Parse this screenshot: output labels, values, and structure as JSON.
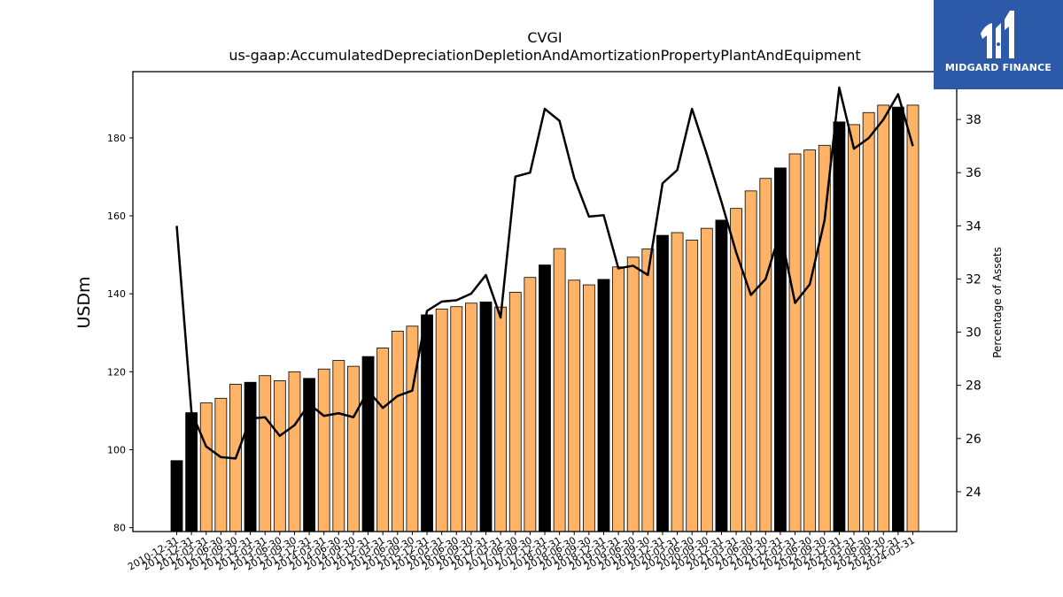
{
  "chart_data": {
    "type": "bar",
    "title": "CVGI",
    "subtitle": "us-gaap:AccumulatedDepreciationDepletionAndAmortizationPropertyPlantAndEquipment",
    "ylabel": "USDm",
    "y2label": "Percentage of Assets",
    "ylim": [
      79,
      197
    ],
    "y2lim": [
      22.5,
      39.8
    ],
    "yticks": [
      80,
      100,
      120,
      140,
      160,
      180
    ],
    "y2ticks": [
      24,
      26,
      28,
      30,
      32,
      34,
      36,
      38
    ],
    "grid": false,
    "categories": [
      "2010-12-31",
      "2011-12-31",
      "2012-03-31",
      "2012-06-30",
      "2012-09-30",
      "2012-12-31",
      "2013-03-31",
      "2013-06-30",
      "2013-09-30",
      "2013-12-31",
      "2014-03-31",
      "2014-06-30",
      "2014-09-30",
      "2014-12-31",
      "2015-03-31",
      "2015-06-30",
      "2015-09-30",
      "2015-12-31",
      "2016-03-31",
      "2016-06-30",
      "2016-09-30",
      "2016-12-31",
      "2017-03-31",
      "2017-06-30",
      "2017-09-30",
      "2017-12-31",
      "2018-03-31",
      "2018-06-30",
      "2018-09-30",
      "2018-12-31",
      "2019-03-31",
      "2019-06-30",
      "2019-09-30",
      "2019-12-31",
      "2020-03-31",
      "2020-06-30",
      "2020-09-30",
      "2020-12-31",
      "2021-03-31",
      "2021-06-30",
      "2021-09-30",
      "2021-12-31",
      "2022-03-31",
      "2022-06-30",
      "2022-09-30",
      "2022-12-31",
      "2023-03-31",
      "2023-06-30",
      "2023-09-30",
      "2023-12-31",
      "2024-03-31"
    ],
    "annual": [
      true,
      true,
      false,
      false,
      false,
      true,
      false,
      false,
      false,
      true,
      false,
      false,
      false,
      true,
      false,
      false,
      false,
      true,
      false,
      false,
      false,
      true,
      false,
      false,
      false,
      true,
      false,
      false,
      false,
      true,
      false,
      false,
      false,
      true,
      false,
      false,
      false,
      true,
      false,
      false,
      false,
      true,
      false,
      false,
      false,
      true,
      false,
      false,
      false,
      true,
      false
    ],
    "series": [
      {
        "name": "USDm",
        "values": [
          97.2,
          109.5,
          112.0,
          113.2,
          116.8,
          117.3,
          119.0,
          117.7,
          120.0,
          118.3,
          120.7,
          122.9,
          121.4,
          123.9,
          126.1,
          130.4,
          131.7,
          134.6,
          136.1,
          136.7,
          137.6,
          137.9,
          136.6,
          140.4,
          144.2,
          147.4,
          151.6,
          143.5,
          142.3,
          143.7,
          146.9,
          149.4,
          151.5,
          155.0,
          155.7,
          153.8,
          156.8,
          158.9,
          161.9,
          166.4,
          169.6,
          172.3,
          175.9,
          176.9,
          178.1,
          184.1,
          183.4,
          186.5,
          188.4,
          187.9,
          188.4
        ]
      },
      {
        "name": "Percentage of Assets",
        "axis": "right",
        "values": [
          34.0,
          27.0,
          25.7,
          25.3,
          25.25,
          26.75,
          26.8,
          26.1,
          26.5,
          27.3,
          26.85,
          26.95,
          26.8,
          27.8,
          27.15,
          27.6,
          27.8,
          30.8,
          31.15,
          31.2,
          31.45,
          32.15,
          30.55,
          35.85,
          36.0,
          38.4,
          37.95,
          35.8,
          34.35,
          34.4,
          32.4,
          32.5,
          32.15,
          35.6,
          36.1,
          38.4,
          36.7,
          34.9,
          33.0,
          31.4,
          32.0,
          33.8,
          31.1,
          31.8,
          34.2,
          39.2,
          36.9,
          37.3,
          38.0,
          38.95,
          37.0
        ]
      }
    ]
  },
  "logo": {
    "name": "midgard-logo",
    "text": "MIDGARD FINANCE"
  },
  "colors": {
    "bar_annual": "#000000",
    "bar_quarter": "#ffb366",
    "line": "#000000",
    "logo_bg": "#2c5aa8"
  }
}
